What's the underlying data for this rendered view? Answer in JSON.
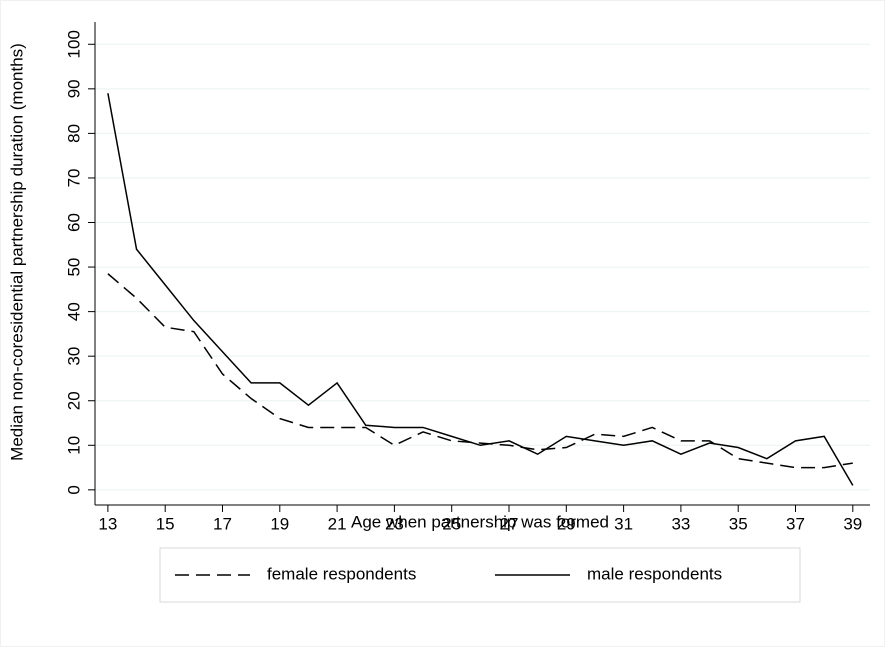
{
  "chart_data": {
    "type": "line",
    "x_label": "Age when partnership was formed",
    "y_label": "Median non-coresidential partnership duration (months)",
    "x": [
      13,
      14,
      15,
      16,
      17,
      18,
      19,
      20,
      21,
      22,
      23,
      24,
      25,
      26,
      27,
      28,
      29,
      30,
      31,
      32,
      33,
      34,
      35,
      36,
      37,
      38,
      39
    ],
    "series": [
      {
        "name": "female respondents",
        "color": "#000000",
        "dash": "dashed",
        "values": [
          48.5,
          43,
          36.5,
          35.5,
          26,
          20.5,
          16,
          14,
          14,
          14,
          10,
          13,
          11,
          10.5,
          10,
          9,
          9.5,
          12.5,
          12,
          14,
          11,
          11,
          7,
          6,
          5,
          5,
          6
        ]
      },
      {
        "name": "male respondents",
        "color": "#000000",
        "dash": "solid",
        "values": [
          89,
          54,
          46,
          38,
          31,
          24,
          24,
          19,
          24,
          14.5,
          14,
          14,
          12,
          10,
          11,
          8,
          12,
          11,
          10,
          11,
          8,
          10.5,
          9.5,
          7,
          11,
          12,
          1
        ]
      }
    ],
    "xlim": [
      12.55,
      39.6
    ],
    "ylim": [
      -3.4,
      105
    ],
    "xticks": [
      13,
      15,
      17,
      19,
      21,
      23,
      25,
      27,
      29,
      31,
      33,
      35,
      37,
      39
    ],
    "yticks": [
      0,
      10,
      20,
      30,
      40,
      50,
      60,
      70,
      80,
      90,
      100
    ],
    "grid": true,
    "legend": "bottom"
  }
}
